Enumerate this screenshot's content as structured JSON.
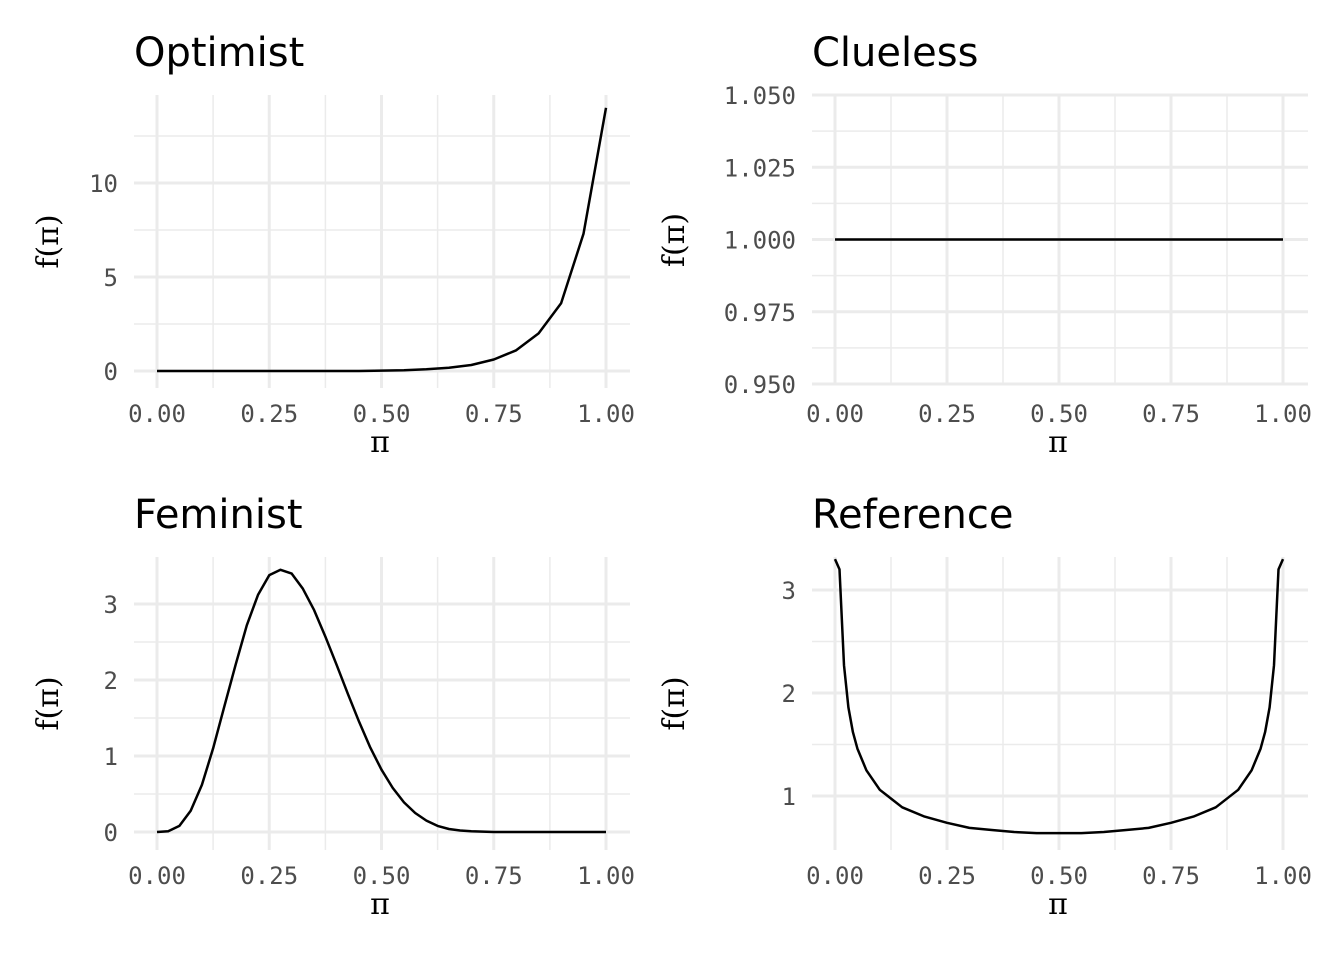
{
  "chart_data": [
    {
      "type": "line",
      "title": "Optimist",
      "xlabel": "π",
      "ylabel": "f(π)",
      "xlim": [
        0,
        1
      ],
      "ylim": [
        0,
        14
      ],
      "x_ticks": [
        "0.00",
        "0.25",
        "0.50",
        "0.75",
        "1.00"
      ],
      "y_ticks": [
        "0",
        "5",
        "10"
      ],
      "grid": true,
      "series": [
        {
          "x": [
            0.0,
            0.05,
            0.1,
            0.15,
            0.2,
            0.25,
            0.3,
            0.35,
            0.4,
            0.45,
            0.5,
            0.55,
            0.6,
            0.65,
            0.7,
            0.75,
            0.8,
            0.85,
            0.9,
            0.95,
            1.0
          ],
          "y": [
            0.0,
            0.0,
            0.0,
            0.0,
            0.0,
            0.0,
            0.0,
            0.0,
            0.0,
            0.0,
            0.02,
            0.04,
            0.09,
            0.17,
            0.32,
            0.61,
            1.1,
            2.0,
            3.6,
            7.3,
            14.0
          ]
        }
      ]
    },
    {
      "type": "line",
      "title": "Clueless",
      "xlabel": "π",
      "ylabel": "f(π)",
      "xlim": [
        0,
        1
      ],
      "ylim": [
        0.95,
        1.05
      ],
      "x_ticks": [
        "0.00",
        "0.25",
        "0.50",
        "0.75",
        "1.00"
      ],
      "y_ticks": [
        "0.950",
        "0.975",
        "1.000",
        "1.025",
        "1.050"
      ],
      "grid": true,
      "series": [
        {
          "x": [
            0.0,
            0.25,
            0.5,
            0.75,
            1.0
          ],
          "y": [
            1.0,
            1.0,
            1.0,
            1.0,
            1.0
          ]
        }
      ]
    },
    {
      "type": "line",
      "title": "Feminist",
      "xlabel": "π",
      "ylabel": "f(π)",
      "xlim": [
        0,
        1
      ],
      "ylim": [
        0,
        3.5
      ],
      "x_ticks": [
        "0.00",
        "0.25",
        "0.50",
        "0.75",
        "1.00"
      ],
      "y_ticks": [
        "0",
        "1",
        "2",
        "3"
      ],
      "grid": true,
      "series": [
        {
          "x": [
            0.0,
            0.025,
            0.05,
            0.075,
            0.1,
            0.125,
            0.15,
            0.175,
            0.2,
            0.225,
            0.25,
            0.275,
            0.3,
            0.325,
            0.35,
            0.375,
            0.4,
            0.425,
            0.45,
            0.475,
            0.5,
            0.525,
            0.55,
            0.575,
            0.6,
            0.625,
            0.65,
            0.675,
            0.7,
            0.75,
            0.8,
            0.85,
            0.9,
            0.95,
            1.0
          ],
          "y": [
            0.0,
            0.01,
            0.08,
            0.28,
            0.62,
            1.1,
            1.65,
            2.2,
            2.72,
            3.12,
            3.38,
            3.45,
            3.4,
            3.2,
            2.92,
            2.57,
            2.2,
            1.82,
            1.45,
            1.11,
            0.82,
            0.58,
            0.39,
            0.25,
            0.15,
            0.08,
            0.04,
            0.02,
            0.01,
            0.0,
            0.0,
            0.0,
            0.0,
            0.0,
            0.0
          ]
        }
      ]
    },
    {
      "type": "line",
      "title": "Reference",
      "xlabel": "π",
      "ylabel": "f(π)",
      "xlim": [
        0,
        1
      ],
      "ylim": [
        0.64,
        3.3
      ],
      "x_ticks": [
        "0.00",
        "0.25",
        "0.50",
        "0.75",
        "1.00"
      ],
      "y_ticks": [
        "1",
        "2",
        "3"
      ],
      "grid": true,
      "series": [
        {
          "x": [
            0.0,
            0.01,
            0.02,
            0.03,
            0.04,
            0.05,
            0.07,
            0.1,
            0.15,
            0.2,
            0.25,
            0.3,
            0.35,
            0.4,
            0.45,
            0.5,
            0.55,
            0.6,
            0.65,
            0.7,
            0.75,
            0.8,
            0.85,
            0.9,
            0.93,
            0.95,
            0.96,
            0.97,
            0.98,
            0.99,
            1.0
          ],
          "y": [
            3.3,
            3.2,
            2.27,
            1.86,
            1.62,
            1.46,
            1.25,
            1.06,
            0.89,
            0.8,
            0.74,
            0.69,
            0.67,
            0.65,
            0.64,
            0.64,
            0.64,
            0.65,
            0.67,
            0.69,
            0.74,
            0.8,
            0.89,
            1.06,
            1.25,
            1.46,
            1.62,
            1.86,
            2.27,
            3.2,
            3.3
          ]
        }
      ]
    }
  ]
}
